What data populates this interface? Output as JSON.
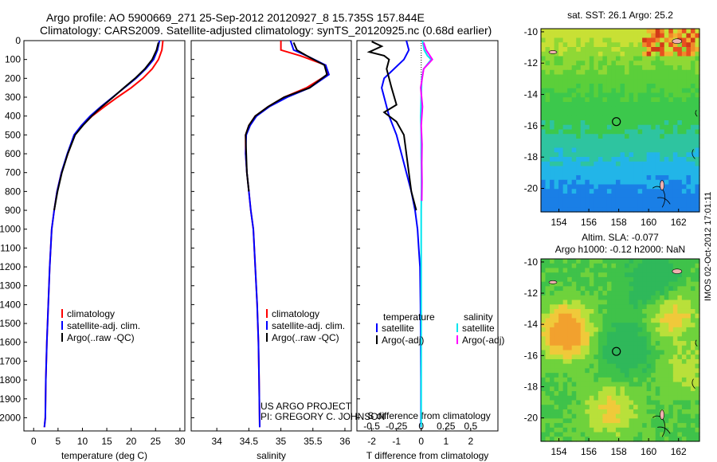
{
  "header": {
    "line1": "Argo profile: AO 5900669_271 25-Sep-2012 20120927_8 15.735S 157.844E",
    "line2": "Climatology: CARS2009. Satellite-adjusted climatology: synTS_20120925.nc (0.68d earlier)"
  },
  "stamp": "IMOS 02-Oct-2012 17:01:11",
  "colors": {
    "climatology": "#ff0000",
    "satellite": "#0000ff",
    "argo": "#000000",
    "satellite_sal": "#00e5ee",
    "argo_sal": "#ff00ff"
  },
  "chart_data": [
    {
      "type": "line",
      "xlabel": "temperature (deg C)",
      "ylabel": "",
      "xlim": [
        -2,
        31
      ],
      "ylim": [
        2070,
        0
      ],
      "xticks": [
        0,
        5,
        10,
        15,
        20,
        25,
        30
      ],
      "yticks": [
        0,
        100,
        200,
        300,
        400,
        500,
        600,
        700,
        800,
        900,
        1000,
        1100,
        1200,
        1300,
        1400,
        1500,
        1600,
        1700,
        1800,
        1900,
        2000
      ],
      "legend": [
        "climatology",
        "satellite-adj. clim.",
        "Argo(..raw -QC)"
      ],
      "series": [
        {
          "name": "climatology",
          "color": "#ff0000",
          "x": [
            26.5,
            26.3,
            25.6,
            24.3,
            22.4,
            20.0,
            17.2,
            14.5,
            12.0,
            10.0,
            8.4,
            7.0,
            5.7,
            4.8,
            4.2,
            3.7,
            3.3,
            3.0,
            2.7,
            2.5,
            2.4,
            2.2
          ],
          "y": [
            0,
            50,
            100,
            150,
            200,
            250,
            300,
            350,
            400,
            450,
            500,
            600,
            700,
            800,
            900,
            1000,
            1200,
            1400,
            1600,
            1800,
            2000,
            2050
          ]
        },
        {
          "name": "satellite-adj. clim.",
          "color": "#0000ff",
          "x": [
            25.8,
            25.4,
            24.6,
            23.0,
            21.0,
            18.6,
            16.2,
            13.8,
            11.6,
            9.8,
            8.3,
            6.9,
            5.7,
            4.8,
            4.2,
            3.7,
            3.3,
            3.0,
            2.7,
            2.5,
            2.4,
            2.2
          ],
          "y": [
            0,
            50,
            100,
            150,
            200,
            250,
            300,
            350,
            400,
            450,
            500,
            600,
            700,
            800,
            900,
            1000,
            1200,
            1400,
            1600,
            1800,
            2000,
            2050
          ]
        },
        {
          "name": "Argo(..raw -QC)",
          "color": "#000000",
          "x": [
            25.6,
            25.2,
            24.3,
            22.8,
            20.8,
            18.5,
            16.3,
            14.0,
            11.9,
            10.1,
            8.5,
            7.0,
            5.8,
            4.9,
            4.2
          ],
          "y": [
            10,
            50,
            100,
            150,
            200,
            250,
            300,
            350,
            400,
            450,
            500,
            600,
            700,
            800,
            900
          ]
        }
      ]
    },
    {
      "type": "line",
      "xlabel": "salinity",
      "ylabel": "",
      "xlim": [
        33.6,
        36.1
      ],
      "ylim": [
        2070,
        0
      ],
      "xticks": [
        34,
        34.5,
        35,
        35.5,
        36
      ],
      "legend": [
        "climatology",
        "satellite-adj. clim.",
        "Argo(..raw -QC)"
      ],
      "annotations": [
        "US ARGO PROJECT",
        "PI: GREGORY C. JOHNSON"
      ],
      "series": [
        {
          "name": "climatology",
          "color": "#ff0000",
          "x": [
            35.0,
            35.0,
            35.3,
            35.7,
            35.73,
            35.4,
            35.05,
            34.8,
            34.6,
            34.5,
            34.45,
            34.45,
            34.47,
            34.5,
            34.53,
            34.57,
            34.6,
            34.63,
            34.65,
            34.66,
            34.67
          ],
          "y": [
            0,
            50,
            80,
            130,
            180,
            250,
            300,
            350,
            400,
            450,
            500,
            600,
            700,
            800,
            900,
            1000,
            1200,
            1400,
            1600,
            1800,
            2050
          ]
        },
        {
          "name": "satellite-adj. clim.",
          "color": "#0000ff",
          "x": [
            35.15,
            35.2,
            35.4,
            35.7,
            35.75,
            35.45,
            35.1,
            34.82,
            34.62,
            34.52,
            34.46,
            34.45,
            34.47,
            34.5,
            34.53,
            34.57,
            34.6,
            34.63,
            34.65,
            34.66,
            34.67
          ],
          "y": [
            0,
            50,
            80,
            130,
            180,
            250,
            300,
            350,
            400,
            450,
            500,
            600,
            700,
            800,
            900,
            1000,
            1200,
            1400,
            1600,
            1800,
            2050
          ]
        },
        {
          "name": "Argo(..raw -QC)",
          "color": "#000000",
          "x": [
            35.2,
            35.25,
            35.4,
            35.68,
            35.72,
            35.45,
            35.05,
            34.8,
            34.6,
            34.5,
            34.45,
            34.46,
            34.47,
            34.5
          ],
          "y": [
            10,
            50,
            80,
            130,
            180,
            250,
            300,
            350,
            400,
            450,
            500,
            600,
            700,
            800
          ]
        }
      ]
    },
    {
      "type": "line",
      "xlabel": "T difference from climatology",
      "xlabel2": "S difference from climatology",
      "xlim": [
        -2.6,
        3.1
      ],
      "x2lim": [
        -0.65,
        0.775
      ],
      "ylim": [
        2070,
        0
      ],
      "xticks": [
        -2,
        -1,
        0,
        1,
        2
      ],
      "x2ticks": [
        -0.5,
        -0.25,
        0,
        0.25,
        0.5
      ],
      "x2ticklabels": [
        "-0.5",
        "-0.25",
        "0",
        "0.25",
        "0.5"
      ],
      "legend_temperature_title": "temperature",
      "legend_salinity_title": "salinity",
      "legend": [
        "satellite",
        "Argo(-adj)",
        "satellite",
        "Argo(-adj)"
      ],
      "series": [
        {
          "name": "satellite",
          "color": "#0000ff",
          "x": [
            -0.6,
            -0.5,
            -0.7,
            -1.1,
            -1.5,
            -1.6,
            -1.5,
            -1.3,
            -1.0,
            -0.8,
            -0.6,
            -0.4,
            -0.25,
            -0.15,
            -0.1,
            -0.05,
            -0.03,
            -0.02,
            -0.01,
            -0.01,
            -0.01
          ],
          "y": [
            0,
            50,
            100,
            150,
            200,
            250,
            300,
            400,
            500,
            600,
            700,
            800,
            900,
            1000,
            1100,
            1200,
            1400,
            1600,
            1800,
            2000,
            2050
          ]
        },
        {
          "name": "Argo(-adj)",
          "color": "#000000",
          "x": [
            -2.0,
            -1.6,
            -2.1,
            -1.5,
            -1.3,
            -1.4,
            -1.2,
            -1.0,
            -1.5,
            -1.0,
            -0.7,
            -0.6,
            -0.5,
            -0.4,
            -0.2
          ],
          "y": [
            5,
            30,
            60,
            80,
            100,
            150,
            250,
            340,
            380,
            430,
            500,
            600,
            700,
            800,
            900
          ]
        },
        {
          "name": "satellite",
          "color": "#00e5ee",
          "x": [
            0.05,
            0.12,
            0.25,
            0.4,
            0.1,
            0.02,
            0.0,
            -0.02,
            0.0,
            0.0,
            0.01,
            0.01,
            0.0,
            0.0,
            0.0,
            0.0,
            0.0
          ],
          "y": [
            0,
            50,
            80,
            100,
            150,
            200,
            300,
            400,
            500,
            600,
            700,
            800,
            900,
            1000,
            1200,
            1600,
            2050
          ]
        },
        {
          "name": "Argo(-adj)",
          "color": "#ff00ff",
          "x": [
            0.1,
            0.2,
            0.3,
            0.45,
            0.1,
            -0.02,
            0.05,
            0.0,
            0.03,
            0.02,
            0.03,
            0.02
          ],
          "y": [
            10,
            50,
            70,
            100,
            150,
            250,
            350,
            450,
            550,
            650,
            750,
            850
          ]
        }
      ]
    },
    {
      "type": "heatmap",
      "title": "sat. SST: 26.1  Argo: 25.2",
      "xticks": [
        154,
        156,
        158,
        160,
        162
      ],
      "yticks": [
        -10,
        -12,
        -14,
        -16,
        -18,
        -20
      ],
      "xlim": [
        152.8,
        163.4
      ],
      "ylim": [
        -21.5,
        -9.8
      ],
      "marker": {
        "lon": 157.844,
        "lat": -15.735
      }
    },
    {
      "type": "heatmap",
      "title": "Altim. SLA: -0.077",
      "subtitle": "Argo h1000: -0.12 h2000: NaN",
      "xticks": [
        154,
        156,
        158,
        160,
        162
      ],
      "yticks": [
        -10,
        -12,
        -14,
        -16,
        -18,
        -20
      ],
      "xlim": [
        152.8,
        163.4
      ],
      "ylim": [
        -21.5,
        -9.8
      ],
      "marker": {
        "lon": 157.844,
        "lat": -15.735
      }
    }
  ]
}
